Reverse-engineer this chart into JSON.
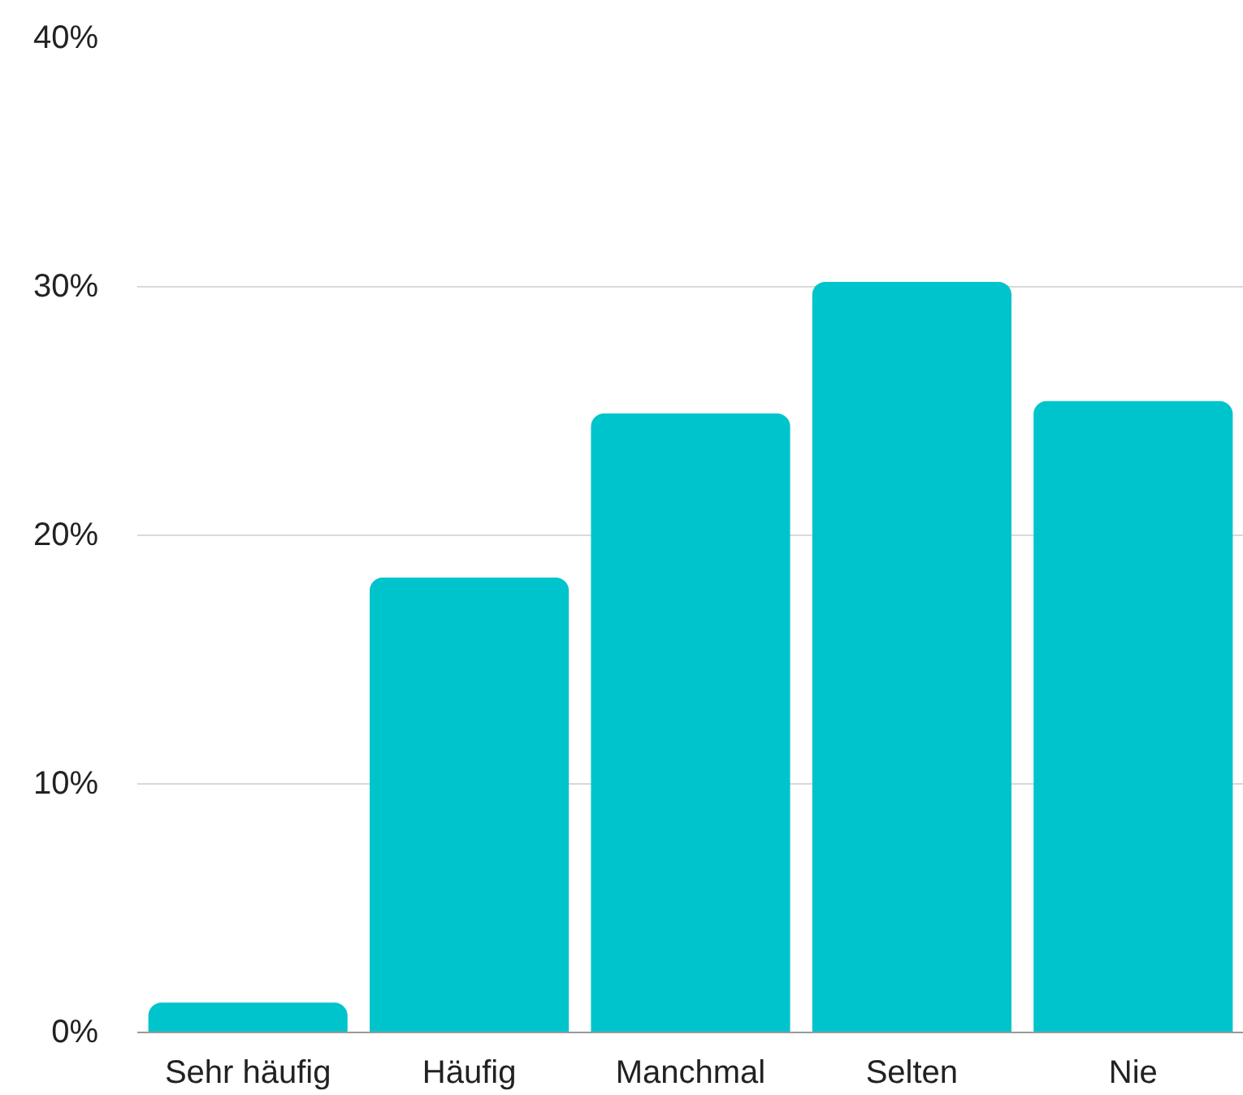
{
  "chart_data": {
    "type": "bar",
    "categories": [
      "Sehr häufig",
      "Häufig",
      "Manchmal",
      "Selten",
      "Nie"
    ],
    "values": [
      1.2,
      18.3,
      24.9,
      30.2,
      25.4
    ],
    "color": "#00c4cc",
    "ylim": [
      0,
      40
    ],
    "yticks": [
      {
        "value": 0,
        "label": "0%"
      },
      {
        "value": 10,
        "label": "10%"
      },
      {
        "value": 20,
        "label": "20%"
      },
      {
        "value": 30,
        "label": "30%"
      },
      {
        "value": 40,
        "label": "40%"
      }
    ],
    "grid": "y"
  }
}
